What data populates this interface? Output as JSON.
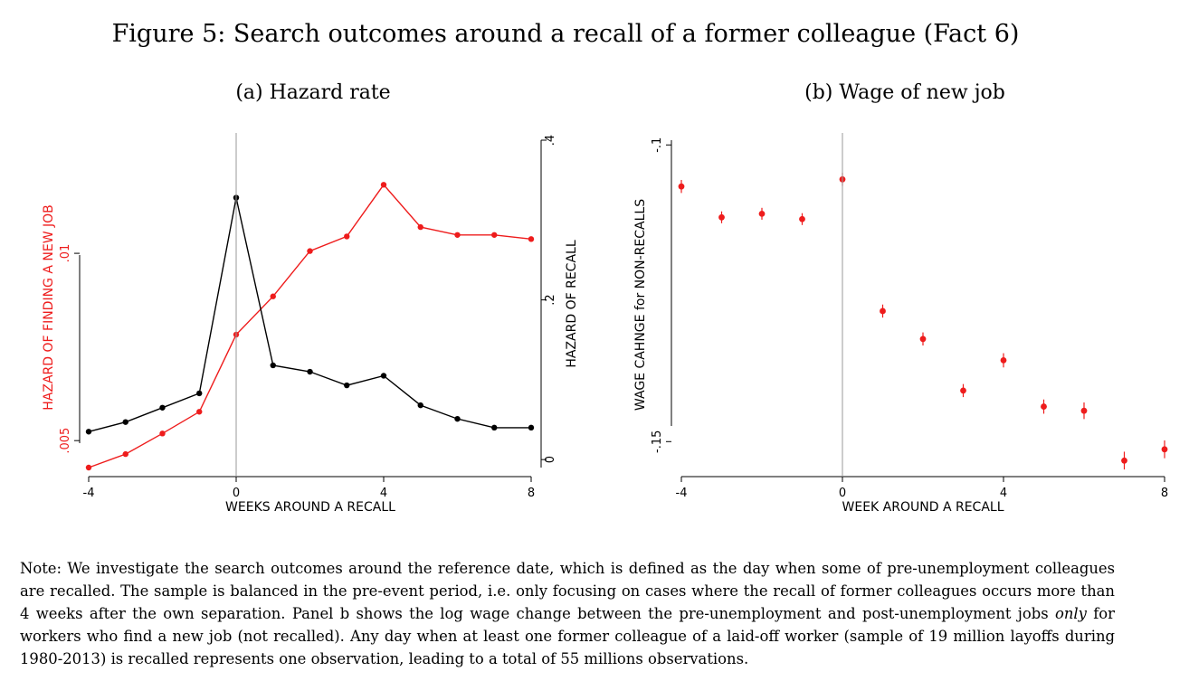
{
  "figure": {
    "title": "Figure 5: Search outcomes around a recall of a former colleague (Fact 6)"
  },
  "note": {
    "text_1": "Note: We investigate the search outcomes around the reference date, which is defined as the day when some of pre-unemployment colleagues are recalled. The sample is balanced in the pre-event period, i.e. only focusing on cases where the recall of former colleagues occurs more than 4 weeks after the own separation. Panel b shows the log wage change between the pre-unemployment and post-unemployment jobs ",
    "emphasis": "only",
    "text_2": " for workers who find a new job (not recalled). Any day when at least one former colleague of a laid-off worker (sample of 19 million layoffs during 1980-2013) is recalled represents one observation, leading to a total of 55 millions observations."
  },
  "colors": {
    "red": "#ee1c1c",
    "black": "#000000",
    "vline": "#999999"
  },
  "chart_data": [
    {
      "type": "line",
      "subtitle": "(a) Hazard rate",
      "xlabel": "WEEKS AROUND A RECALL",
      "x": [
        -4,
        -3,
        -2,
        -1,
        0,
        1,
        2,
        3,
        4,
        5,
        6,
        7,
        8
      ],
      "xticks": [
        "-4",
        "0",
        "4",
        "8"
      ],
      "xlim": [
        -4,
        8
      ],
      "vline_at": 0,
      "grid": false,
      "left_axis": {
        "label": "HAZARD OF FINDING A NEW JOB",
        "color": "#ee1c1c",
        "ticks": [
          ".005",
          ".01"
        ],
        "tick_values": [
          0.005,
          0.01
        ],
        "ylim": [
          0.00428,
          0.01302
        ]
      },
      "right_axis": {
        "label": "HAZARD OF RECALL",
        "color": "#000000",
        "ticks": [
          "0",
          ".2",
          ".4"
        ],
        "tick_values": [
          0.0,
          0.2,
          0.4
        ],
        "ylim": [
          -0.01,
          0.4
        ]
      },
      "series": [
        {
          "axis": "left",
          "color": "#ee1c1c",
          "values": [
            0.00428,
            0.00464,
            0.00519,
            0.00577,
            0.00783,
            0.00885,
            0.01006,
            0.01045,
            0.01183,
            0.0107,
            0.01049,
            0.01049,
            0.01038
          ]
        },
        {
          "axis": "right",
          "color": "#000000",
          "values": [
            0.035,
            0.047,
            0.065,
            0.083,
            0.328,
            0.118,
            0.11,
            0.093,
            0.105,
            0.068,
            0.051,
            0.04,
            0.04
          ]
        }
      ]
    },
    {
      "type": "scatter",
      "subtitle": "(b) Wage of new job",
      "xlabel": "WEEK AROUND A RECALL",
      "ylabel": "WAGE CAHNGE for NON-RECALLS",
      "x": [
        -4,
        -3,
        -2,
        -1,
        0,
        1,
        2,
        3,
        4,
        5,
        6,
        7,
        8
      ],
      "xticks": [
        "-4",
        "0",
        "4",
        "8"
      ],
      "xlim": [
        -4,
        8
      ],
      "vline_at": 0,
      "grid": false,
      "y_axis": {
        "ticks": [
          "-.1",
          "-.15"
        ],
        "tick_values": [
          -0.1,
          -0.15
        ],
        "ylim": [
          -0.1559,
          -0.0992
        ]
      },
      "series": [
        {
          "color": "#ee1c1c",
          "values": [
            -0.107,
            -0.1122,
            -0.1116,
            -0.1125,
            -0.1058,
            -0.128,
            -0.1327,
            -0.1414,
            -0.1363,
            -0.1441,
            -0.1448,
            -0.1532,
            -0.1513
          ],
          "err": [
            0.0011,
            0.001,
            0.001,
            0.001,
            0.0011,
            0.0011,
            0.0011,
            0.0011,
            0.0012,
            0.0012,
            0.0014,
            0.0015,
            0.0015
          ]
        }
      ]
    }
  ]
}
